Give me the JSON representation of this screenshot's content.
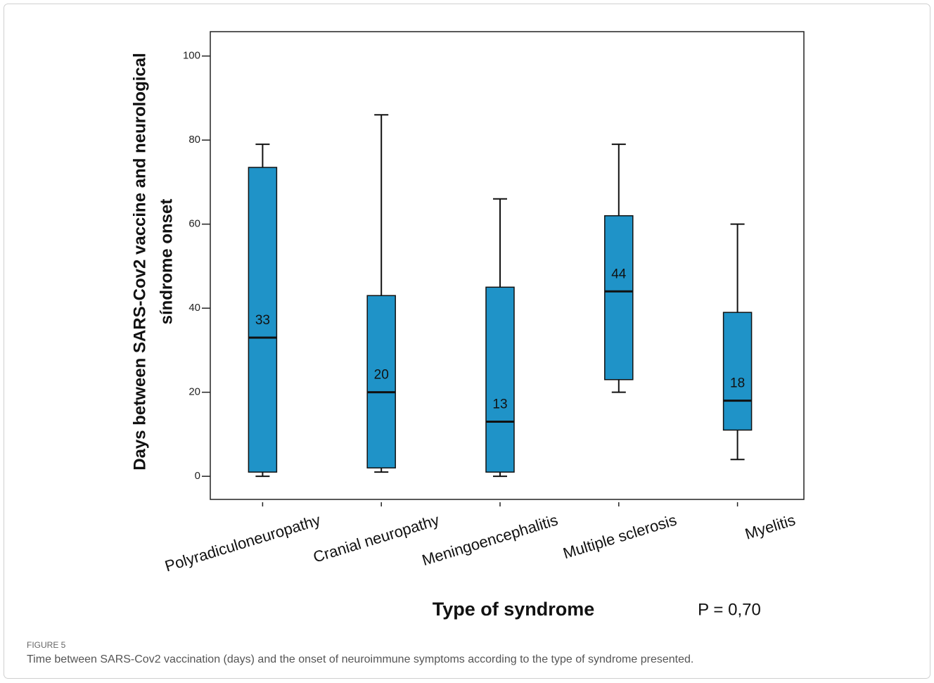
{
  "chart_data": {
    "type": "box",
    "y_label": [
      "Days between SARS-Cov2 vaccine and neurological",
      "síndrome onset"
    ],
    "x_label": "Type of syndrome",
    "annotation": "P = 0,70",
    "categories": [
      "Polyradiculoneuropathy",
      "Cranial neuropathy",
      "Meningoencephalitis",
      "Multiple sclerosis",
      "Myelitis"
    ],
    "color": "#1f93c8",
    "boxes": [
      {
        "whisker_low": 0,
        "q1": 1,
        "median": 33,
        "q3": 73.5,
        "whisker_high": 79
      },
      {
        "whisker_low": 1,
        "q1": 2,
        "median": 20,
        "q3": 43,
        "whisker_high": 86
      },
      {
        "whisker_low": 0,
        "q1": 1,
        "median": 13,
        "q3": 45,
        "whisker_high": 66
      },
      {
        "whisker_low": 20,
        "q1": 23,
        "median": 44,
        "q3": 62,
        "whisker_high": 79
      },
      {
        "whisker_low": 4,
        "q1": 11,
        "median": 18,
        "q3": 39,
        "whisker_high": 60
      }
    ],
    "ylim": [
      -5.5,
      105.8
    ],
    "yticks": [
      0,
      20,
      40,
      60,
      80,
      100
    ]
  },
  "caption": {
    "label": "FIGURE 5",
    "text": "Time between SARS-Cov2 vaccination (days) and the onset of neuroimmune symptoms according to the type of syndrome presented."
  }
}
